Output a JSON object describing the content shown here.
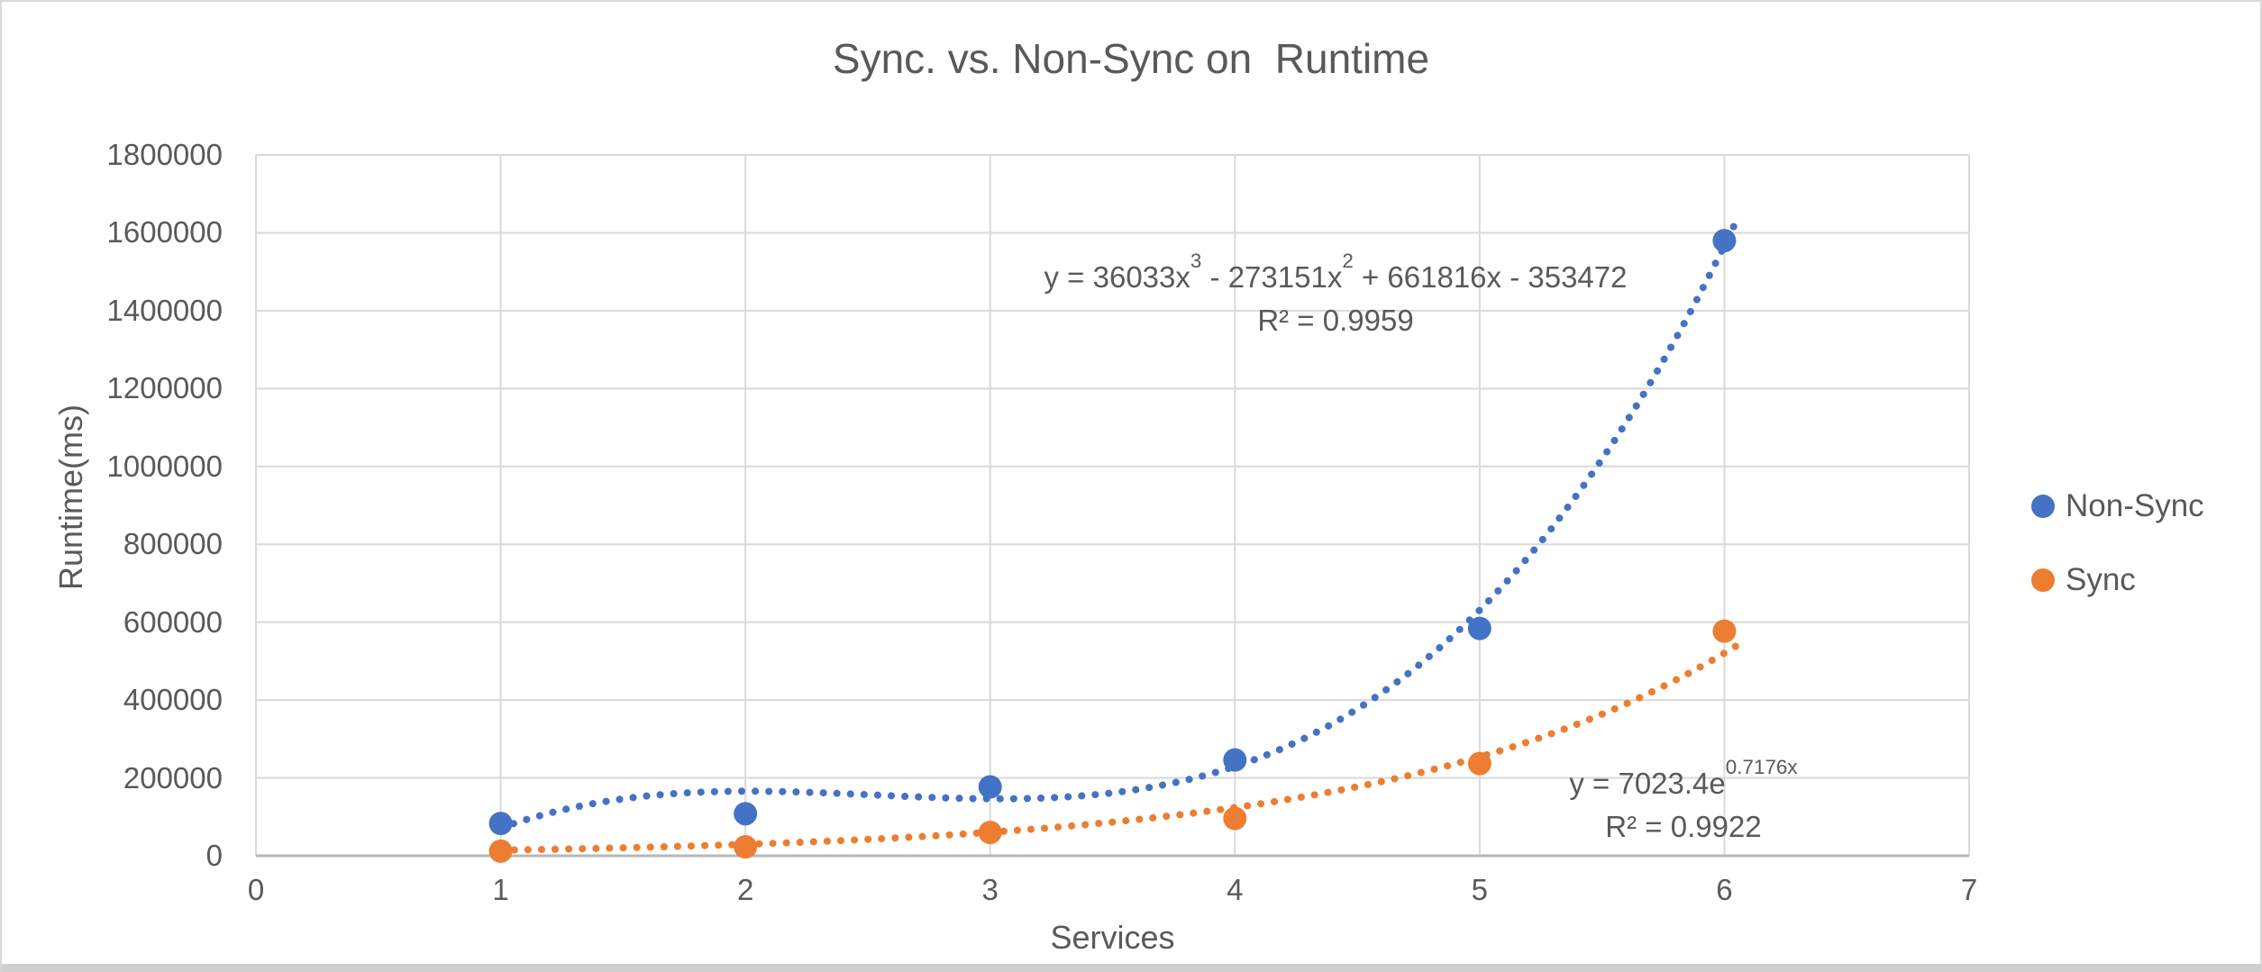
{
  "chart": {
    "title": "Sync. vs. Non-Sync on  Runtime",
    "y_axis_title": "Runtime(ms)",
    "x_axis_title": "Services"
  },
  "legend": {
    "position": "right",
    "items": [
      {
        "label": "Non-Sync",
        "color": "#4472C4"
      },
      {
        "label": "Sync",
        "color": "#ED7D31"
      }
    ]
  },
  "equations": {
    "nonsync": {
      "p1": "y = 36033x",
      "s1": "3",
      "p2": " - 273151x",
      "s2": "2",
      "p3": " + 661816x - 353472",
      "r2": "R² = 0.9959"
    },
    "sync": {
      "base": "y = 7023.4e",
      "exp": "0.7176x",
      "r2": "R² = 0.9922"
    }
  },
  "chart_data": {
    "type": "scatter",
    "title": "Sync. vs. Non-Sync on  Runtime",
    "xlabel": "Services",
    "ylabel": "Runtime(ms)",
    "x": [
      1,
      2,
      3,
      4,
      5,
      6
    ],
    "series": [
      {
        "name": "Non-Sync",
        "color": "#4472C4",
        "values": [
          83000,
          108000,
          177000,
          246000,
          584000,
          1580000
        ]
      },
      {
        "name": "Sync",
        "color": "#ED7D31",
        "values": [
          12000,
          23000,
          60000,
          96000,
          237000,
          577000
        ]
      }
    ],
    "xlim": [
      0,
      7
    ],
    "ylim": [
      0,
      1800000
    ],
    "xticks": [
      0,
      1,
      2,
      3,
      4,
      5,
      6,
      7
    ],
    "yticks": [
      0,
      200000,
      400000,
      600000,
      800000,
      1000000,
      1200000,
      1400000,
      1600000,
      1800000
    ],
    "grid": true,
    "legend_position": "right",
    "trendlines": [
      {
        "series": "Non-Sync",
        "type": "polynomial",
        "style": "dotted",
        "color": "#4472C4",
        "coeffs": [
          36033,
          -273151,
          661816,
          -353472
        ],
        "domain": [
          1,
          6.05
        ],
        "equation": "y = 36033x³ - 273151x² + 661816x - 353472",
        "r2": 0.9959
      },
      {
        "series": "Sync",
        "type": "exponential",
        "style": "dotted",
        "color": "#ED7D31",
        "a": 7023.4,
        "b": 0.7176,
        "domain": [
          1,
          6.05
        ],
        "equation": "y = 7023.4e^(0.7176x)",
        "r2": 0.9922
      }
    ]
  }
}
